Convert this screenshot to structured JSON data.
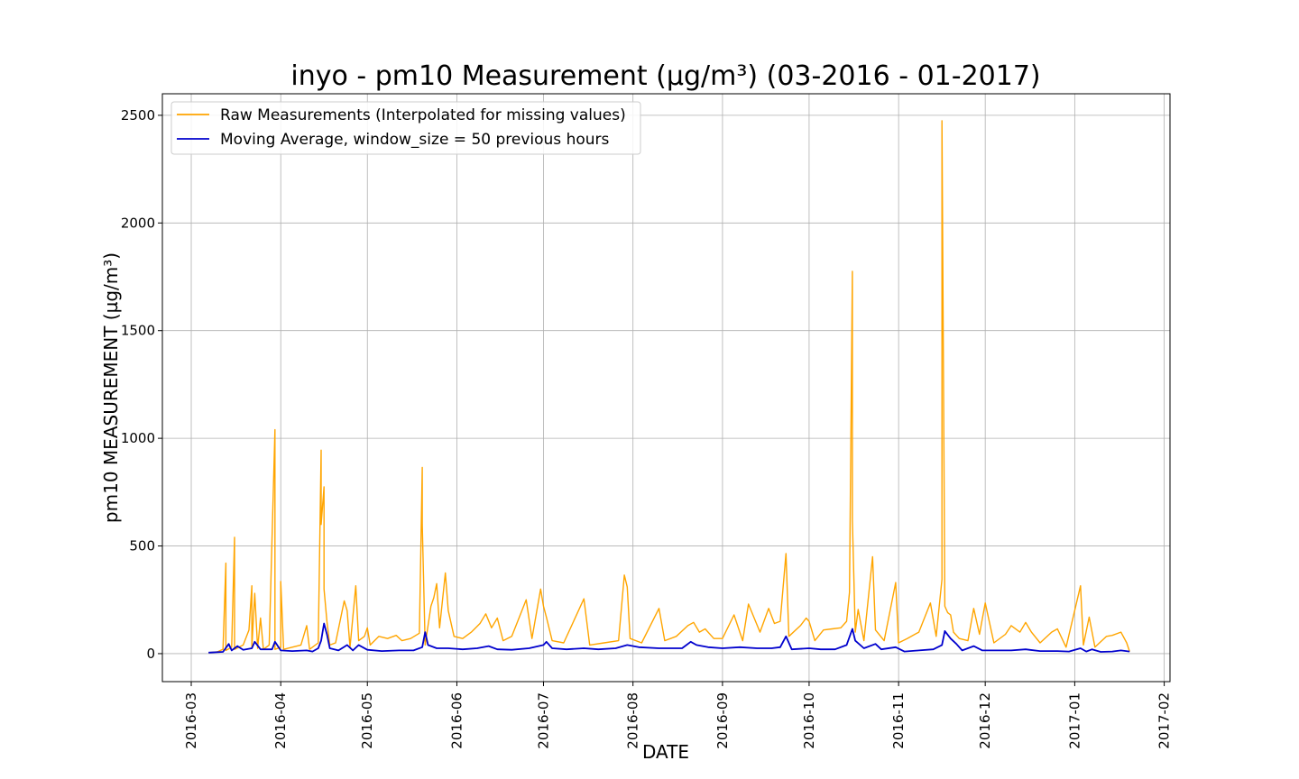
{
  "chart_data": {
    "type": "line",
    "title": "inyo - pm10 Measurement (µg/m³) (03-2016 - 01-2017)",
    "xlabel": "DATE",
    "ylabel": "pm10 MEASUREMENT (µg/m³)",
    "xlim": [
      "2016-02-20",
      "2017-02-03"
    ],
    "ylim": [
      -130,
      2600
    ],
    "grid": true,
    "legend_position": "top-left",
    "x_ticks": [
      "2016-03",
      "2016-04",
      "2016-05",
      "2016-06",
      "2016-07",
      "2016-08",
      "2016-09",
      "2016-10",
      "2016-11",
      "2016-12",
      "2017-01",
      "2017-02"
    ],
    "y_ticks": [
      0,
      500,
      1000,
      1500,
      2000,
      2500
    ],
    "series": [
      {
        "name": "Raw Measurements (Interpolated for missing values)",
        "color": "#ffa500",
        "points": [
          [
            "2016-03-07",
            5
          ],
          [
            "2016-03-10",
            8
          ],
          [
            "2016-03-12",
            20
          ],
          [
            "2016-03-13",
            420
          ],
          [
            "2016-03-13",
            15
          ],
          [
            "2016-03-15",
            30
          ],
          [
            "2016-03-16",
            540
          ],
          [
            "2016-03-16",
            20
          ],
          [
            "2016-03-19",
            40
          ],
          [
            "2016-03-21",
            110
          ],
          [
            "2016-03-22",
            315
          ],
          [
            "2016-03-22",
            30
          ],
          [
            "2016-03-23",
            280
          ],
          [
            "2016-03-24",
            25
          ],
          [
            "2016-03-25",
            165
          ],
          [
            "2016-03-26",
            20
          ],
          [
            "2016-03-28",
            40
          ],
          [
            "2016-03-30",
            1040
          ],
          [
            "2016-03-30",
            20
          ],
          [
            "2016-04-01",
            30
          ],
          [
            "2016-04-01",
            335
          ],
          [
            "2016-04-02",
            20
          ],
          [
            "2016-04-05",
            30
          ],
          [
            "2016-04-08",
            40
          ],
          [
            "2016-04-10",
            130
          ],
          [
            "2016-04-11",
            20
          ],
          [
            "2016-04-14",
            50
          ],
          [
            "2016-04-15",
            945
          ],
          [
            "2016-04-15",
            600
          ],
          [
            "2016-04-16",
            775
          ],
          [
            "2016-04-16",
            300
          ],
          [
            "2016-04-17",
            150
          ],
          [
            "2016-04-18",
            40
          ],
          [
            "2016-04-20",
            50
          ],
          [
            "2016-04-23",
            245
          ],
          [
            "2016-04-24",
            200
          ],
          [
            "2016-04-25",
            30
          ],
          [
            "2016-04-27",
            315
          ],
          [
            "2016-04-28",
            60
          ],
          [
            "2016-04-30",
            80
          ],
          [
            "2016-05-01",
            120
          ],
          [
            "2016-05-02",
            40
          ],
          [
            "2016-05-05",
            80
          ],
          [
            "2016-05-08",
            70
          ],
          [
            "2016-05-11",
            85
          ],
          [
            "2016-05-13",
            60
          ],
          [
            "2016-05-16",
            70
          ],
          [
            "2016-05-19",
            95
          ],
          [
            "2016-05-20",
            865
          ],
          [
            "2016-05-20",
            600
          ],
          [
            "2016-05-21",
            40
          ],
          [
            "2016-05-23",
            220
          ],
          [
            "2016-05-24",
            260
          ],
          [
            "2016-05-25",
            325
          ],
          [
            "2016-05-26",
            120
          ],
          [
            "2016-05-28",
            375
          ],
          [
            "2016-05-29",
            200
          ],
          [
            "2016-05-31",
            80
          ],
          [
            "2016-06-03",
            70
          ],
          [
            "2016-06-06",
            100
          ],
          [
            "2016-06-09",
            140
          ],
          [
            "2016-06-11",
            185
          ],
          [
            "2016-06-13",
            120
          ],
          [
            "2016-06-15",
            165
          ],
          [
            "2016-06-17",
            60
          ],
          [
            "2016-06-20",
            80
          ],
          [
            "2016-06-25",
            250
          ],
          [
            "2016-06-27",
            70
          ],
          [
            "2016-06-30",
            300
          ],
          [
            "2016-07-01",
            220
          ],
          [
            "2016-07-02",
            170
          ],
          [
            "2016-07-04",
            60
          ],
          [
            "2016-07-08",
            50
          ],
          [
            "2016-07-15",
            255
          ],
          [
            "2016-07-17",
            40
          ],
          [
            "2016-07-22",
            50
          ],
          [
            "2016-07-27",
            60
          ],
          [
            "2016-07-29",
            365
          ],
          [
            "2016-07-30",
            310
          ],
          [
            "2016-07-31",
            70
          ],
          [
            "2016-08-04",
            50
          ],
          [
            "2016-08-10",
            210
          ],
          [
            "2016-08-12",
            60
          ],
          [
            "2016-08-16",
            80
          ],
          [
            "2016-08-20",
            130
          ],
          [
            "2016-08-22",
            145
          ],
          [
            "2016-08-24",
            100
          ],
          [
            "2016-08-26",
            115
          ],
          [
            "2016-08-29",
            70
          ],
          [
            "2016-09-01",
            70
          ],
          [
            "2016-09-05",
            180
          ],
          [
            "2016-09-08",
            60
          ],
          [
            "2016-09-10",
            230
          ],
          [
            "2016-09-14",
            100
          ],
          [
            "2016-09-17",
            210
          ],
          [
            "2016-09-19",
            140
          ],
          [
            "2016-09-21",
            150
          ],
          [
            "2016-09-23",
            465
          ],
          [
            "2016-09-24",
            80
          ],
          [
            "2016-09-28",
            130
          ],
          [
            "2016-09-30",
            165
          ],
          [
            "2016-10-01",
            150
          ],
          [
            "2016-10-03",
            60
          ],
          [
            "2016-10-06",
            110
          ],
          [
            "2016-10-09",
            115
          ],
          [
            "2016-10-12",
            120
          ],
          [
            "2016-10-14",
            150
          ],
          [
            "2016-10-15",
            285
          ],
          [
            "2016-10-16",
            1775
          ],
          [
            "2016-10-16",
            620
          ],
          [
            "2016-10-17",
            100
          ],
          [
            "2016-10-18",
            205
          ],
          [
            "2016-10-20",
            60
          ],
          [
            "2016-10-23",
            450
          ],
          [
            "2016-10-24",
            110
          ],
          [
            "2016-10-27",
            60
          ],
          [
            "2016-10-31",
            330
          ],
          [
            "2016-11-01",
            50
          ],
          [
            "2016-11-04",
            70
          ],
          [
            "2016-11-08",
            100
          ],
          [
            "2016-11-12",
            235
          ],
          [
            "2016-11-14",
            80
          ],
          [
            "2016-11-16",
            345
          ],
          [
            "2016-11-16",
            2475
          ],
          [
            "2016-11-17",
            220
          ],
          [
            "2016-11-18",
            190
          ],
          [
            "2016-11-19",
            180
          ],
          [
            "2016-11-20",
            100
          ],
          [
            "2016-11-22",
            70
          ],
          [
            "2016-11-25",
            60
          ],
          [
            "2016-11-27",
            210
          ],
          [
            "2016-11-29",
            90
          ],
          [
            "2016-12-01",
            235
          ],
          [
            "2016-12-04",
            50
          ],
          [
            "2016-12-08",
            90
          ],
          [
            "2016-12-10",
            130
          ],
          [
            "2016-12-13",
            100
          ],
          [
            "2016-12-15",
            145
          ],
          [
            "2016-12-17",
            100
          ],
          [
            "2016-12-20",
            50
          ],
          [
            "2016-12-24",
            100
          ],
          [
            "2016-12-26",
            115
          ],
          [
            "2016-12-29",
            30
          ],
          [
            "2017-01-03",
            315
          ],
          [
            "2017-01-04",
            40
          ],
          [
            "2017-01-06",
            170
          ],
          [
            "2017-01-08",
            30
          ],
          [
            "2017-01-12",
            80
          ],
          [
            "2017-01-14",
            85
          ],
          [
            "2017-01-17",
            100
          ],
          [
            "2017-01-19",
            50
          ],
          [
            "2017-01-20",
            10
          ]
        ]
      },
      {
        "name": "Moving Average, window_size = 50 previous hours",
        "color": "#0000cd",
        "points": [
          [
            "2016-03-07",
            5
          ],
          [
            "2016-03-12",
            8
          ],
          [
            "2016-03-14",
            45
          ],
          [
            "2016-03-15",
            15
          ],
          [
            "2016-03-17",
            35
          ],
          [
            "2016-03-19",
            18
          ],
          [
            "2016-03-22",
            25
          ],
          [
            "2016-03-23",
            55
          ],
          [
            "2016-03-25",
            20
          ],
          [
            "2016-03-29",
            20
          ],
          [
            "2016-03-30",
            55
          ],
          [
            "2016-04-01",
            15
          ],
          [
            "2016-04-05",
            12
          ],
          [
            "2016-04-10",
            15
          ],
          [
            "2016-04-12",
            10
          ],
          [
            "2016-04-14",
            25
          ],
          [
            "2016-04-15",
            60
          ],
          [
            "2016-04-16",
            140
          ],
          [
            "2016-04-17",
            90
          ],
          [
            "2016-04-18",
            25
          ],
          [
            "2016-04-21",
            15
          ],
          [
            "2016-04-24",
            40
          ],
          [
            "2016-04-26",
            15
          ],
          [
            "2016-04-28",
            40
          ],
          [
            "2016-05-01",
            18
          ],
          [
            "2016-05-06",
            12
          ],
          [
            "2016-05-12",
            15
          ],
          [
            "2016-05-17",
            15
          ],
          [
            "2016-05-20",
            30
          ],
          [
            "2016-05-21",
            100
          ],
          [
            "2016-05-22",
            40
          ],
          [
            "2016-05-25",
            25
          ],
          [
            "2016-05-29",
            25
          ],
          [
            "2016-06-03",
            20
          ],
          [
            "2016-06-08",
            25
          ],
          [
            "2016-06-12",
            35
          ],
          [
            "2016-06-15",
            20
          ],
          [
            "2016-06-20",
            18
          ],
          [
            "2016-06-26",
            25
          ],
          [
            "2016-07-01",
            40
          ],
          [
            "2016-07-02",
            55
          ],
          [
            "2016-07-04",
            25
          ],
          [
            "2016-07-09",
            20
          ],
          [
            "2016-07-15",
            25
          ],
          [
            "2016-07-20",
            20
          ],
          [
            "2016-07-26",
            25
          ],
          [
            "2016-07-30",
            40
          ],
          [
            "2016-08-03",
            30
          ],
          [
            "2016-08-10",
            25
          ],
          [
            "2016-08-18",
            25
          ],
          [
            "2016-08-21",
            55
          ],
          [
            "2016-08-23",
            40
          ],
          [
            "2016-08-27",
            30
          ],
          [
            "2016-09-01",
            25
          ],
          [
            "2016-09-07",
            30
          ],
          [
            "2016-09-13",
            25
          ],
          [
            "2016-09-18",
            25
          ],
          [
            "2016-09-21",
            30
          ],
          [
            "2016-09-23",
            80
          ],
          [
            "2016-09-25",
            20
          ],
          [
            "2016-10-01",
            25
          ],
          [
            "2016-10-05",
            20
          ],
          [
            "2016-10-10",
            20
          ],
          [
            "2016-10-14",
            40
          ],
          [
            "2016-10-16",
            115
          ],
          [
            "2016-10-17",
            60
          ],
          [
            "2016-10-20",
            25
          ],
          [
            "2016-10-24",
            45
          ],
          [
            "2016-10-26",
            20
          ],
          [
            "2016-10-31",
            30
          ],
          [
            "2016-11-03",
            10
          ],
          [
            "2016-11-08",
            15
          ],
          [
            "2016-11-13",
            20
          ],
          [
            "2016-11-16",
            40
          ],
          [
            "2016-11-17",
            105
          ],
          [
            "2016-11-19",
            70
          ],
          [
            "2016-11-21",
            45
          ],
          [
            "2016-11-23",
            15
          ],
          [
            "2016-11-27",
            35
          ],
          [
            "2016-11-30",
            15
          ],
          [
            "2016-12-05",
            15
          ],
          [
            "2016-12-10",
            15
          ],
          [
            "2016-12-15",
            20
          ],
          [
            "2016-12-20",
            12
          ],
          [
            "2016-12-26",
            12
          ],
          [
            "2016-12-30",
            10
          ],
          [
            "2017-01-03",
            25
          ],
          [
            "2017-01-05",
            10
          ],
          [
            "2017-01-07",
            20
          ],
          [
            "2017-01-10",
            8
          ],
          [
            "2017-01-14",
            10
          ],
          [
            "2017-01-17",
            15
          ],
          [
            "2017-01-20",
            10
          ]
        ]
      }
    ]
  }
}
